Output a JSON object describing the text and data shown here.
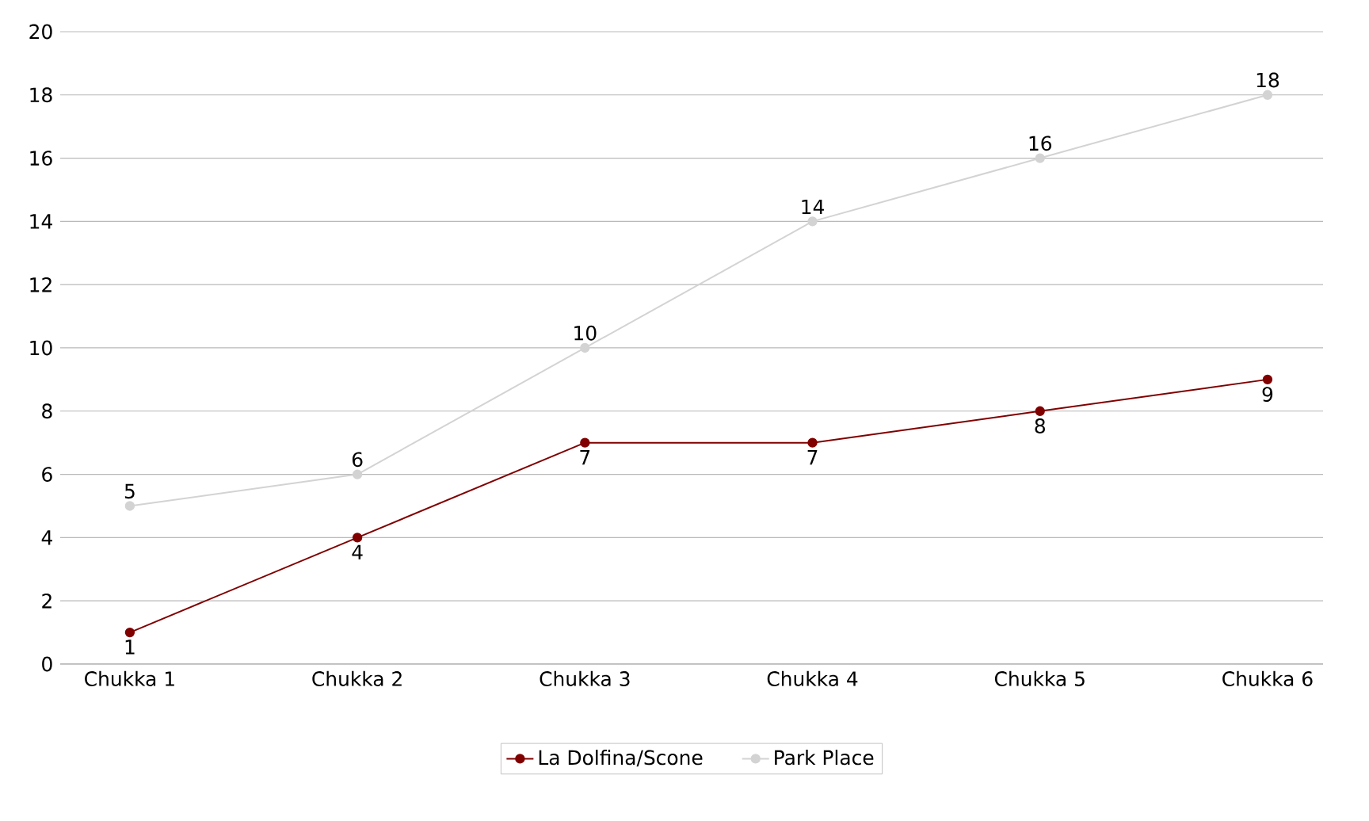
{
  "chart_data": {
    "type": "line",
    "categories": [
      "Chukka 1",
      "Chukka 2",
      "Chukka 3",
      "Chukka 4",
      "Chukka 5",
      "Chukka 6"
    ],
    "series": [
      {
        "name": "La Dolfina/Scone",
        "color": "#800000",
        "values": [
          1,
          4,
          7,
          7,
          8,
          9
        ]
      },
      {
        "name": "Park Place",
        "color": "#d3d3d3",
        "values": [
          5,
          6,
          10,
          14,
          16,
          18
        ]
      }
    ],
    "ylim": [
      0,
      20
    ],
    "yticks": [
      0,
      2,
      4,
      6,
      8,
      10,
      12,
      14,
      16,
      18,
      20
    ],
    "grid": "y",
    "legend": "bottom",
    "marker": "circle",
    "line_style": "solid",
    "data_labels": true
  }
}
